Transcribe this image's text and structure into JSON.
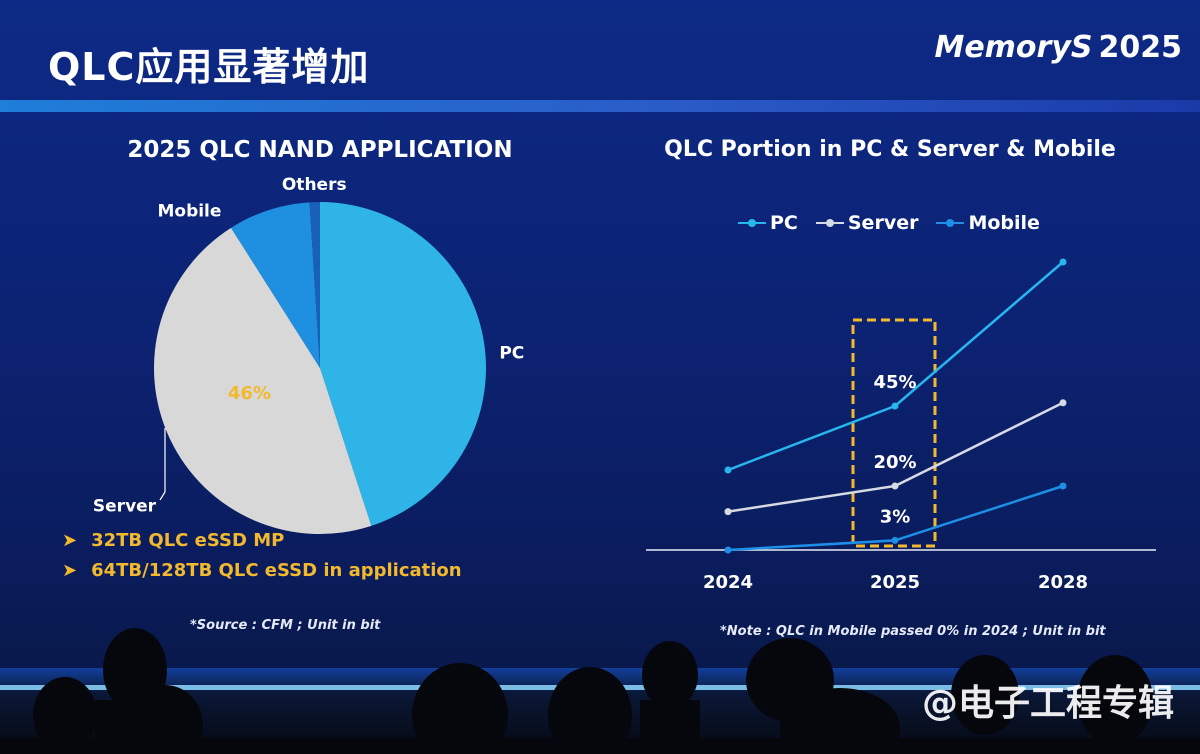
{
  "slide": {
    "title": "QLC应用显著增加",
    "brand": "MemoryS",
    "brand_year": "2025",
    "watermark": "@电子工程专辑"
  },
  "chart_data": [
    {
      "type": "pie",
      "title": "2025 QLC NAND APPLICATION",
      "labels": [
        "PC",
        "Server",
        "Mobile",
        "Others"
      ],
      "values": [
        45,
        46,
        8,
        1
      ],
      "colors": [
        "#2fb4e8",
        "#d8d8d8",
        "#1f8fe0",
        "#1a5fb8"
      ],
      "data_labels": [
        "",
        "46%",
        "",
        ""
      ]
    },
    {
      "type": "line",
      "title": "QLC Portion in PC & Server & Mobile",
      "categories": [
        "2024",
        "2025",
        "2028"
      ],
      "series": [
        {
          "name": "PC",
          "values": [
            25,
            45,
            90
          ],
          "color": "#27b6ee"
        },
        {
          "name": "Server",
          "values": [
            12,
            20,
            46
          ],
          "color": "#d6dae3"
        },
        {
          "name": "Mobile",
          "values": [
            0,
            3,
            20
          ],
          "color": "#1d8fe6"
        }
      ],
      "data_labels": [
        "45%",
        "20%",
        "3%"
      ],
      "highlight": "2025",
      "ylim": [
        0,
        100
      ],
      "grid": false
    }
  ],
  "bullets": [
    "32TB QLC eSSD MP",
    "64TB/128TB QLC eSSD in application"
  ],
  "notes": {
    "left": "*Source : CFM ; Unit in bit",
    "right": "*Note : QLC in Mobile passed 0% in 2024 ; Unit in bit"
  }
}
